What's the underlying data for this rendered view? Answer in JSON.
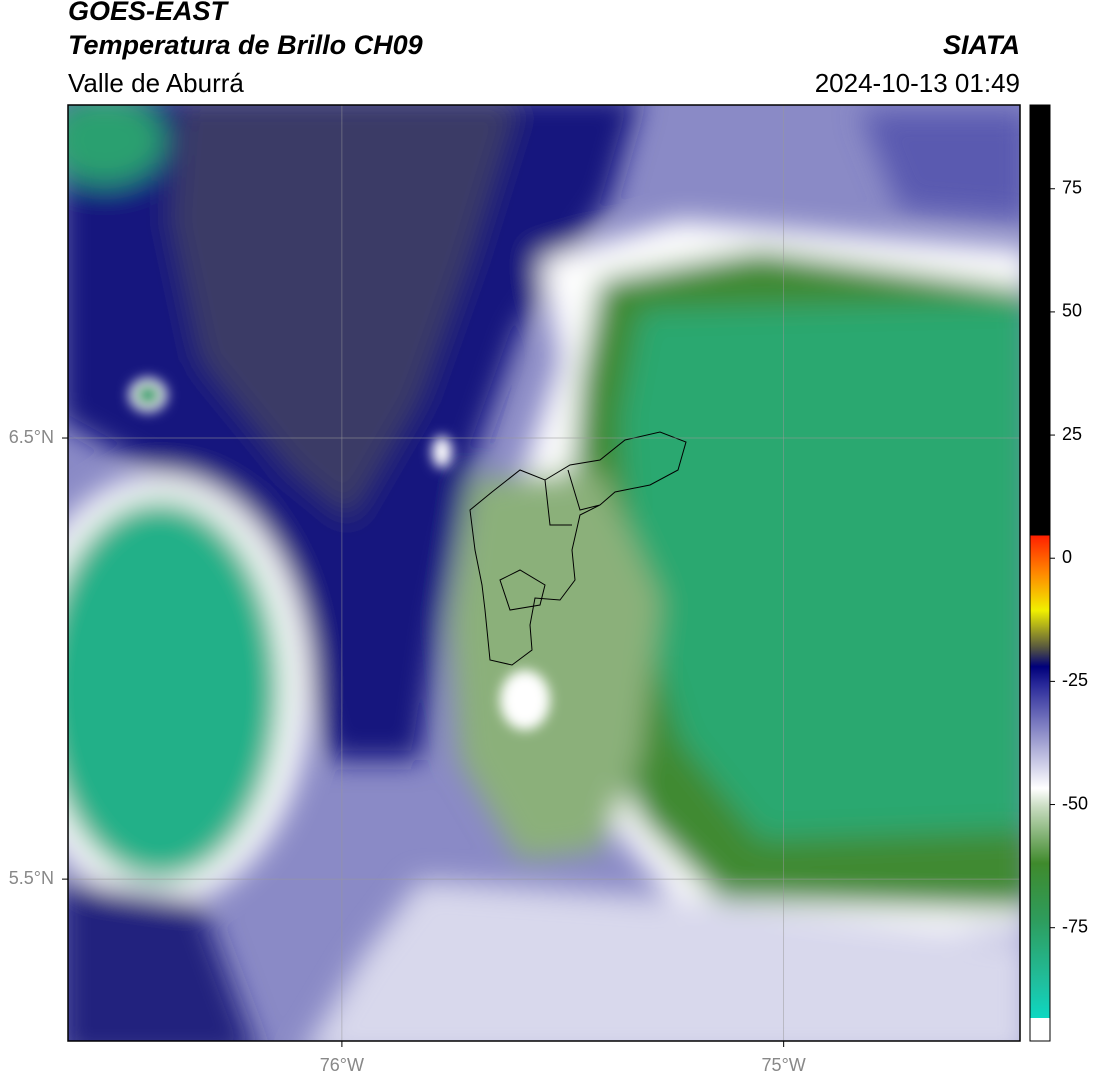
{
  "header": {
    "title": "GOES-EAST",
    "subtitle": "Temperatura de Brillo CH09",
    "region": "Valle de Aburrá",
    "agency": "SIATA",
    "datetime": "2024-10-13 01:49"
  },
  "map": {
    "lonlim": [
      -76.62,
      -74.465
    ],
    "latlim": [
      5.133,
      7.255
    ],
    "lon_ticks": [
      {
        "value": -76,
        "label": "76°W"
      },
      {
        "value": -75,
        "label": "75°W"
      }
    ],
    "lat_ticks": [
      {
        "value": 6.5,
        "label": "6.5°N"
      },
      {
        "value": 5.5,
        "label": "5.5°N"
      }
    ],
    "grid": true
  },
  "colorbar": {
    "lim": [
      -98,
      92
    ],
    "ticks": [
      75,
      50,
      25,
      0,
      -25,
      -50,
      -75
    ]
  }
}
